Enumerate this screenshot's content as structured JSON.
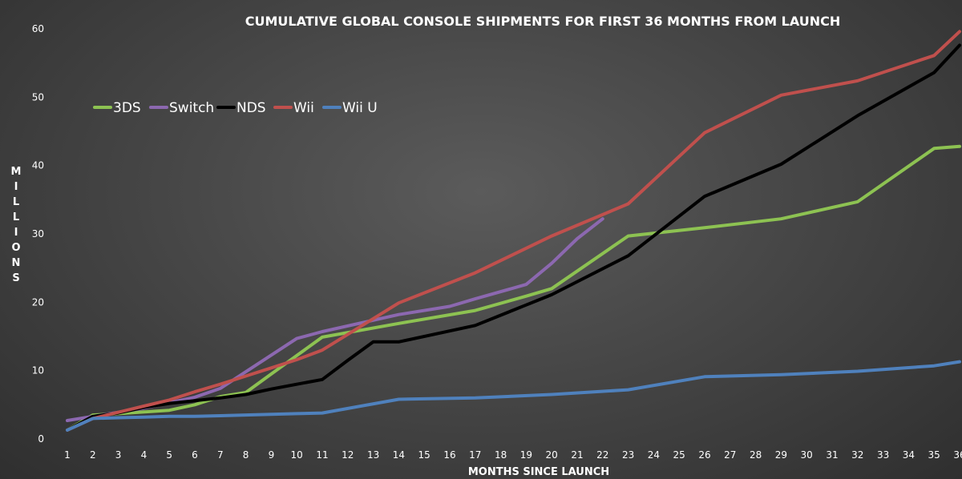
{
  "chart_data": {
    "type": "line",
    "title": "CUMULATIVE GLOBAL CONSOLE SHIPMENTS FOR FIRST 36 MONTHS FROM LAUNCH",
    "xlabel": "MONTHS SINCE LAUNCH",
    "ylabel": "MILLIONS",
    "x": [
      1,
      2,
      3,
      4,
      5,
      6,
      7,
      8,
      9,
      10,
      11,
      12,
      13,
      14,
      15,
      16,
      17,
      18,
      19,
      20,
      21,
      22,
      23,
      24,
      25,
      26,
      27,
      28,
      29,
      30,
      31,
      32,
      33,
      34,
      35,
      36
    ],
    "xlim": [
      1,
      36
    ],
    "ylim": [
      0,
      60
    ],
    "yticks": [
      0,
      10,
      20,
      30,
      40,
      50,
      60
    ],
    "grid": false,
    "legend_position": "upper-left",
    "series": [
      {
        "name": "3DS",
        "color": "#8dc252",
        "x": [
          1,
          2,
          3,
          5,
          6,
          7,
          8,
          9,
          10,
          11,
          14,
          17,
          19,
          20,
          23,
          26,
          29,
          32,
          35,
          36
        ],
        "y": [
          1.3,
          3.5,
          3.7,
          4.2,
          5.0,
          6.2,
          6.8,
          9.5,
          12.2,
          14.9,
          16.9,
          18.8,
          20.9,
          22.0,
          29.7,
          30.9,
          32.2,
          34.7,
          42.5,
          42.8
        ]
      },
      {
        "name": "Switch",
        "color": "#8c68b0",
        "x": [
          1,
          2,
          4,
          6,
          7,
          10,
          11,
          14,
          16,
          17,
          19,
          20,
          21,
          22
        ],
        "y": [
          2.7,
          3.3,
          4.5,
          6.1,
          7.4,
          14.7,
          15.7,
          18.2,
          19.4,
          20.5,
          22.6,
          25.7,
          29.3,
          32.2
        ]
      },
      {
        "name": "NDS",
        "color": "#000000",
        "x": [
          1,
          2,
          3,
          4,
          5,
          6,
          7,
          8,
          9,
          10,
          11,
          12,
          13,
          14,
          17,
          19,
          20,
          23,
          26,
          29,
          32,
          35,
          36
        ],
        "y": [
          1.3,
          3.3,
          3.8,
          4.6,
          5.2,
          5.6,
          6.0,
          6.5,
          7.3,
          8.0,
          8.7,
          11.5,
          14.2,
          14.2,
          16.6,
          19.6,
          21.1,
          26.8,
          35.5,
          40.2,
          47.3,
          53.6,
          57.6
        ]
      },
      {
        "name": "Wii",
        "color": "#c0504d",
        "x": [
          1,
          2,
          3,
          4,
          5,
          6,
          7,
          8,
          9,
          10,
          11,
          14,
          17,
          20,
          23,
          26,
          29,
          32,
          35,
          36
        ],
        "y": [
          1.3,
          3.0,
          3.9,
          4.8,
          5.7,
          6.9,
          8.0,
          9.2,
          10.4,
          11.6,
          13.0,
          19.9,
          24.3,
          29.7,
          34.4,
          44.8,
          50.3,
          52.4,
          56.1,
          59.6
        ]
      },
      {
        "name": "Wii U",
        "color": "#4f81bd",
        "x": [
          1,
          2,
          3,
          4,
          5,
          6,
          7,
          8,
          9,
          10,
          11,
          14,
          17,
          20,
          23,
          26,
          29,
          32,
          35,
          36
        ],
        "y": [
          1.3,
          3.0,
          3.1,
          3.2,
          3.3,
          3.3,
          3.4,
          3.5,
          3.6,
          3.7,
          3.8,
          5.8,
          6.0,
          6.5,
          7.2,
          9.1,
          9.4,
          9.9,
          10.7,
          11.3
        ]
      }
    ]
  }
}
